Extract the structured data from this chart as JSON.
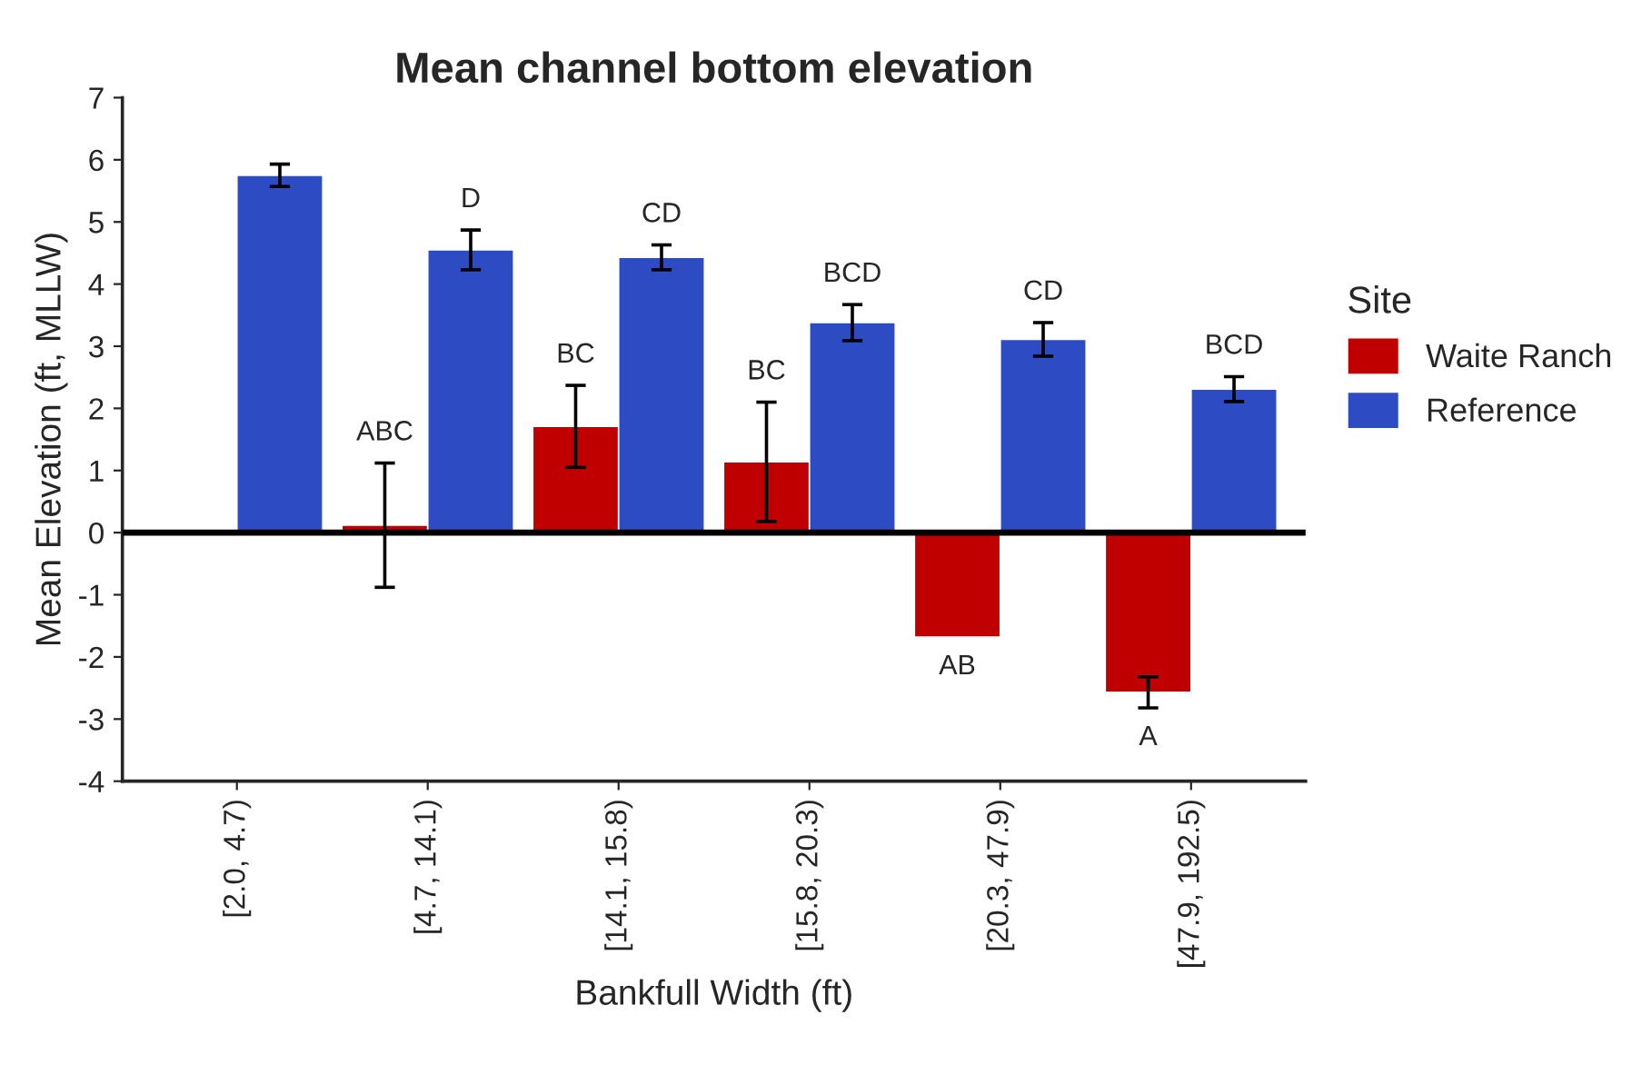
{
  "chart_data": {
    "type": "bar",
    "title": "Mean channel bottom elevation",
    "xlabel": "Bankfull Width (ft)",
    "ylabel": "Mean Elevation (ft, MLLW)",
    "legend_title": "Site",
    "categories": [
      "[2.0, 4.7)",
      "[4.7, 14.1)",
      "[14.1, 15.8)",
      "[15.8, 20.3)",
      "[20.3, 47.9)",
      "[47.9, 192.5)"
    ],
    "series": [
      {
        "name": "Waite Ranch",
        "color": "#c00000",
        "values": [
          null,
          0.12,
          1.71,
          1.14,
          -1.68,
          -2.57
        ],
        "errors": [
          null,
          1.0,
          0.66,
          0.96,
          null,
          0.25
        ],
        "value_labels": [
          null,
          "ABC",
          "BC",
          "BC",
          "AB",
          "A"
        ]
      },
      {
        "name": "Reference",
        "color": "#2d4bc2",
        "values": [
          5.75,
          4.55,
          4.43,
          3.38,
          3.11,
          2.31
        ],
        "errors": [
          0.18,
          0.32,
          0.2,
          0.29,
          0.27,
          0.2
        ],
        "value_labels": [
          null,
          "D",
          "CD",
          "BCD",
          "CD",
          "BCD"
        ]
      }
    ],
    "ylim": [
      -4,
      7
    ],
    "yticks": [
      -4,
      -3,
      -2,
      -1,
      0,
      1,
      2,
      3,
      4,
      5,
      6,
      7
    ],
    "ref_lines": [
      {
        "axis": "y",
        "value": 0,
        "color": "#000000"
      }
    ],
    "grid": false,
    "legend": "right"
  }
}
